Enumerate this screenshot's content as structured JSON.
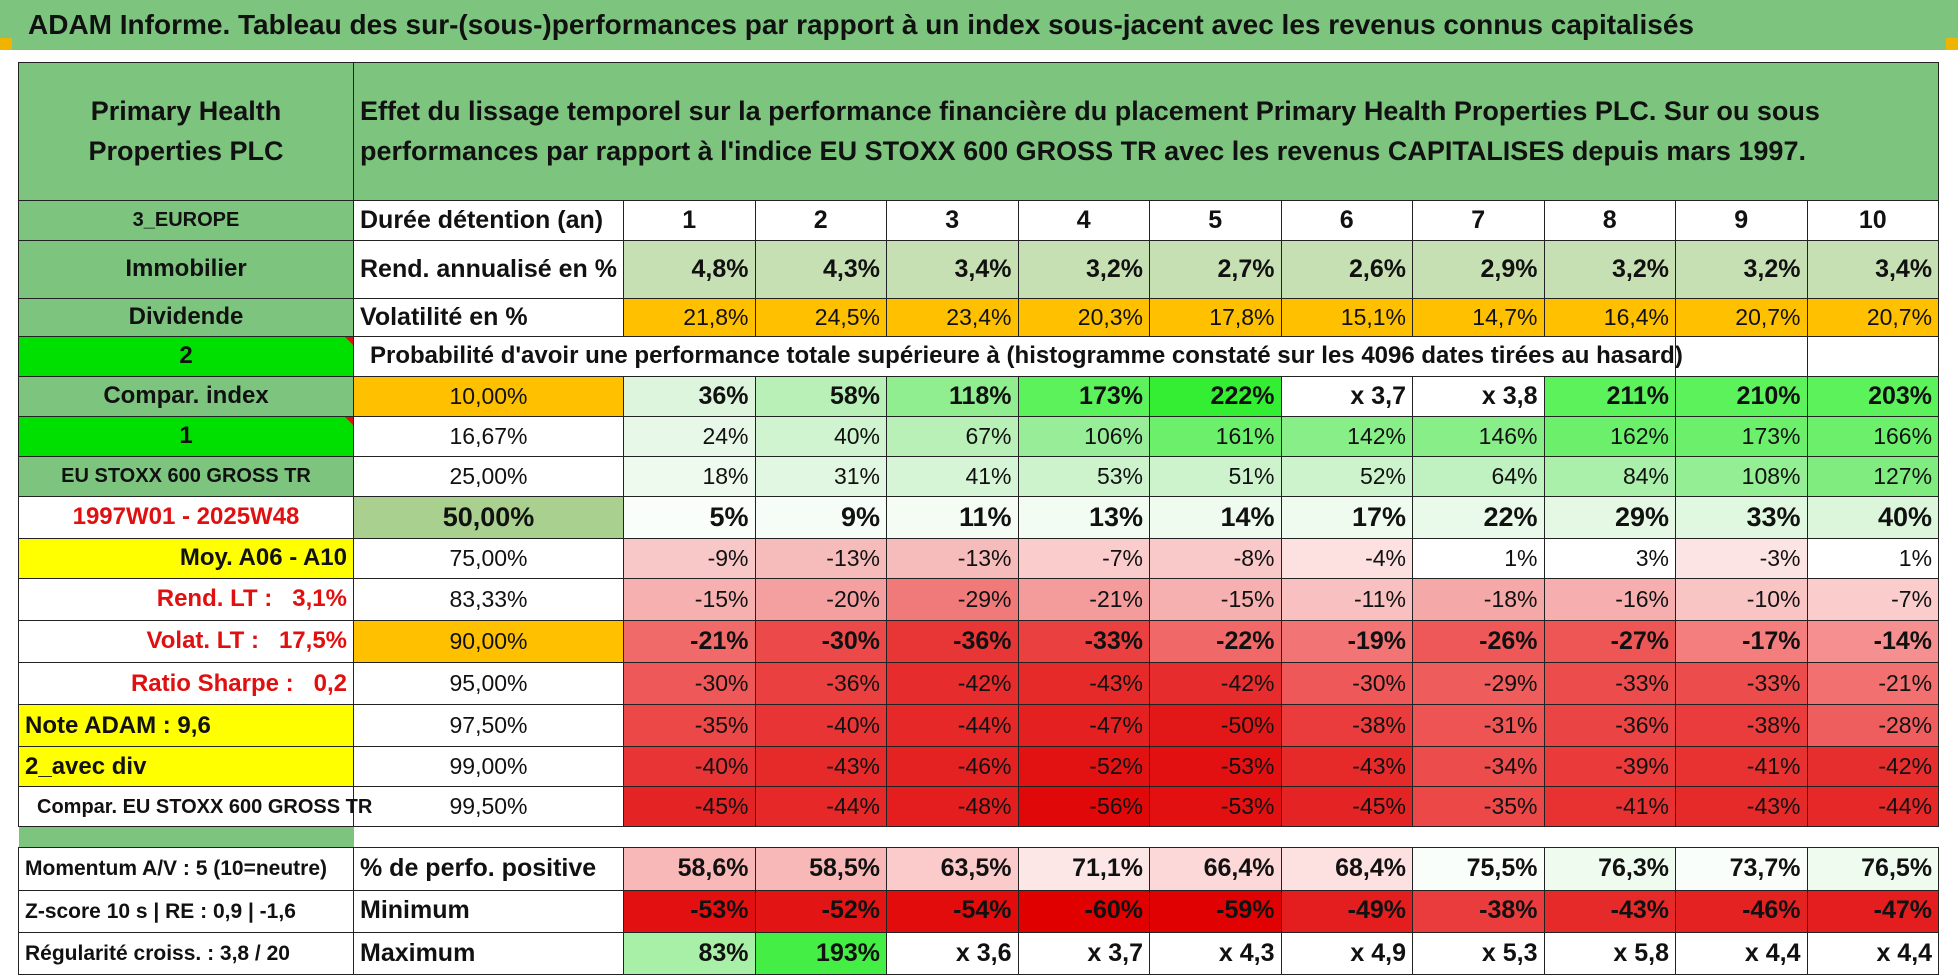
{
  "title": "ADAM Informe. Tableau des sur-(sous-)performances par rapport à un index sous-jacent avec les revenus connus capitalisés",
  "header": {
    "company": "Primary Health Properties PLC",
    "description": "Effet du lissage temporel sur la performance financière du placement Primary Health Properties PLC. Sur ou sous performances par rapport à l'indice EU STOXX 600 GROSS TR avec les revenus CAPITALISES depuis mars 1997."
  },
  "side": {
    "region": "3_EUROPE",
    "sector": "Immobilier",
    "type": "Dividende",
    "num2": "2",
    "compar_index": "Compar. index",
    "num1": "1",
    "index_name": "EU STOXX 600 GROSS TR",
    "period": "1997W01 - 2025W48",
    "moy": "Moy. A06 - A10",
    "rend_lt": "Rend. LT :   3,1%",
    "volat_lt": "Volat. LT :   17,5%",
    "sharpe": "Ratio Sharpe :   0,2",
    "note": "Note ADAM : 9,6",
    "div": "2_avec div",
    "compar": "Compar. EU STOXX 600 GROSS TR",
    "momentum": "Momentum A/V : 5 (10=neutre)",
    "zscore": "Z-score 10 s | RE : 0,9 | -1,6",
    "regularite": "Régularité croiss. : 3,8 / 20"
  },
  "labels": {
    "duree": "Durée détention (an)",
    "rend": "Rend. annualisé en %",
    "volat": "Volatilité en %",
    "probability": "Probabilité d'avoir une performance totale supérieure à (histogramme constaté sur les 4096 dates tirées au hasard)",
    "positive": "% de perfo. positive",
    "minimum": "Minimum",
    "maximum": "Maximum"
  },
  "years": [
    "1",
    "2",
    "3",
    "4",
    "5",
    "6",
    "7",
    "8",
    "9",
    "10"
  ],
  "rend": [
    "4,8%",
    "4,3%",
    "3,4%",
    "3,2%",
    "2,7%",
    "2,6%",
    "2,9%",
    "3,2%",
    "3,2%",
    "3,4%"
  ],
  "volat": [
    "21,8%",
    "24,5%",
    "23,4%",
    "20,3%",
    "17,8%",
    "15,1%",
    "14,7%",
    "16,4%",
    "20,7%",
    "20,7%"
  ],
  "percentiles": [
    {
      "pct": "10,00%",
      "vals": [
        "36%",
        "58%",
        "118%",
        "173%",
        "222%",
        "x 3,7",
        "x 3,8",
        "211%",
        "210%",
        "203%"
      ],
      "colors": [
        "#dcf5dc",
        "#b8f0b8",
        "#90ee90",
        "#5cf25c",
        "#33ee33",
        "#ffffff",
        "#ffffff",
        "#5cf25c",
        "#5cf25c",
        "#5cf25c"
      ]
    },
    {
      "pct": "16,67%",
      "vals": [
        "24%",
        "40%",
        "67%",
        "106%",
        "161%",
        "142%",
        "146%",
        "162%",
        "173%",
        "166%"
      ],
      "colors": [
        "#e8f8e8",
        "#d0f4d0",
        "#b8f0b8",
        "#98ee98",
        "#6cf06c",
        "#88ee88",
        "#88ee88",
        "#6cf06c",
        "#6cf06c",
        "#6cf06c"
      ]
    },
    {
      "pct": "25,00%",
      "vals": [
        "18%",
        "31%",
        "41%",
        "53%",
        "51%",
        "52%",
        "64%",
        "84%",
        "108%",
        "127%"
      ],
      "colors": [
        "#eefaee",
        "#e2f7e2",
        "#d6f5d6",
        "#ccf3cc",
        "#ccf3cc",
        "#ccf3cc",
        "#c0f1c0",
        "#aaefaa",
        "#94ee94",
        "#80ec80"
      ]
    },
    {
      "pct": "50,00%",
      "vals": [
        "5%",
        "9%",
        "11%",
        "13%",
        "14%",
        "17%",
        "22%",
        "29%",
        "33%",
        "40%"
      ],
      "colors": [
        "#fafefa",
        "#f6fdf6",
        "#f4fcf4",
        "#f2fcf2",
        "#f0fbf0",
        "#eefbee",
        "#eafaea",
        "#e4f8e4",
        "#e0f8e0",
        "#dcf6dc"
      ]
    },
    {
      "pct": "75,00%",
      "vals": [
        "-9%",
        "-13%",
        "-13%",
        "-7%",
        "-8%",
        "-4%",
        "1%",
        "3%",
        "-3%",
        "1%"
      ],
      "colors": [
        "#f8c8c8",
        "#f6bcbc",
        "#f6bcbc",
        "#facccc",
        "#f9c8c8",
        "#fde0e0",
        "#ffffff",
        "#ffffff",
        "#fde4e4",
        "#ffffff"
      ]
    },
    {
      "pct": "83,33%",
      "vals": [
        "-15%",
        "-20%",
        "-29%",
        "-21%",
        "-15%",
        "-11%",
        "-18%",
        "-16%",
        "-10%",
        "-7%"
      ],
      "colors": [
        "#f6b0b0",
        "#f4a0a0",
        "#f07a7a",
        "#f49c9c",
        "#f6b0b0",
        "#f8c0c0",
        "#f5a8a8",
        "#f6aeae",
        "#f8c4c4",
        "#facccc"
      ]
    },
    {
      "pct": "90,00%",
      "vals": [
        "-21%",
        "-30%",
        "-36%",
        "-33%",
        "-22%",
        "-19%",
        "-26%",
        "-27%",
        "-17%",
        "-14%"
      ],
      "colors": [
        "#f06a6a",
        "#ec4a4a",
        "#e83636",
        "#ea4040",
        "#f06868",
        "#f27474",
        "#ee5858",
        "#ee5656",
        "#f47e7e",
        "#f69090"
      ]
    },
    {
      "pct": "95,00%",
      "vals": [
        "-30%",
        "-36%",
        "-42%",
        "-43%",
        "-42%",
        "-30%",
        "-29%",
        "-33%",
        "-33%",
        "-21%"
      ],
      "colors": [
        "#ee5858",
        "#ea4040",
        "#e62c2c",
        "#e62a2a",
        "#e62c2c",
        "#ee5858",
        "#ee5c5c",
        "#ec4c4c",
        "#ec4c4c",
        "#f27070"
      ]
    },
    {
      "pct": "97,50%",
      "vals": [
        "-35%",
        "-40%",
        "-44%",
        "-47%",
        "-50%",
        "-38%",
        "-31%",
        "-36%",
        "-38%",
        "-28%"
      ],
      "colors": [
        "#ec4848",
        "#e83434",
        "#e62828",
        "#e42020",
        "#e21818",
        "#ea3c3c",
        "#ee5454",
        "#ea4444",
        "#ea3c3c",
        "#ee5e5e"
      ]
    },
    {
      "pct": "99,00%",
      "vals": [
        "-40%",
        "-43%",
        "-46%",
        "-52%",
        "-53%",
        "-43%",
        "-34%",
        "-39%",
        "-41%",
        "-42%"
      ],
      "colors": [
        "#e83434",
        "#e62a2a",
        "#e42222",
        "#e21212",
        "#e21010",
        "#e62a2a",
        "#ec4c4c",
        "#ea3a3a",
        "#e83232",
        "#e62e2e"
      ]
    },
    {
      "pct": "99,50%",
      "vals": [
        "-45%",
        "-44%",
        "-48%",
        "-56%",
        "-53%",
        "-45%",
        "-35%",
        "-41%",
        "-43%",
        "-44%"
      ],
      "colors": [
        "#e42424",
        "#e62828",
        "#e41e1e",
        "#e00808",
        "#e21010",
        "#e42424",
        "#ec4848",
        "#e83232",
        "#e62a2a",
        "#e62828"
      ]
    }
  ],
  "positive": [
    "58,6%",
    "58,5%",
    "63,5%",
    "71,1%",
    "66,4%",
    "68,4%",
    "75,5%",
    "76,3%",
    "73,7%",
    "76,5%"
  ],
  "positive_colors": [
    "#f8b8b8",
    "#f8b8b8",
    "#fbcaca",
    "#fde6e6",
    "#fdd8d8",
    "#fde0e0",
    "#fafefa",
    "#eefbee",
    "#fafefa",
    "#eefbee"
  ],
  "minimum": [
    "-53%",
    "-52%",
    "-54%",
    "-60%",
    "-59%",
    "-49%",
    "-38%",
    "-43%",
    "-46%",
    "-47%"
  ],
  "minimum_colors": [
    "#e21010",
    "#e21414",
    "#e20c0c",
    "#e00000",
    "#e00202",
    "#e41e1e",
    "#ea3c3c",
    "#e62a2a",
    "#e42222",
    "#e41e1e"
  ],
  "maximum": [
    "83%",
    "193%",
    "x 3,6",
    "x 3,7",
    "x 4,3",
    "x 4,9",
    "x 5,3",
    "x 5,8",
    "x 4,4",
    "x 4,4"
  ],
  "maximum_colors": [
    "#a8f0a8",
    "#44ee44",
    "#ffffff",
    "#ffffff",
    "#ffffff",
    "#ffffff",
    "#ffffff",
    "#ffffff",
    "#ffffff",
    "#ffffff"
  ],
  "colors": {
    "green": "#7dc57f",
    "orange": "#ffc000",
    "yellow": "#ffff00",
    "red_text": "#e01010",
    "rend_bg": "#c6e0b4",
    "bright_green": "#00e000"
  }
}
